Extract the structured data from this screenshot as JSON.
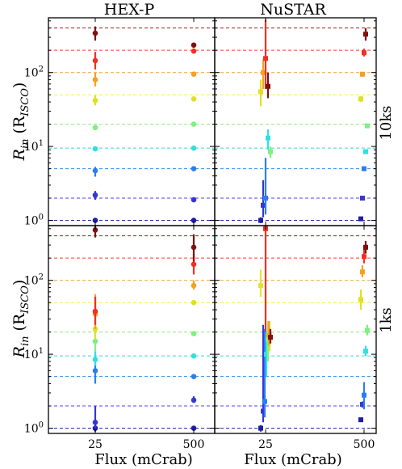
{
  "figure": {
    "column_titles": [
      "HEX-P",
      "NuSTAR"
    ],
    "row_labels": [
      "10ks",
      "1ks"
    ],
    "ylabel_main": "R",
    "ylabel_sub": "in",
    "ylabel_unit_open": " (R",
    "ylabel_unit_sub": "ISCO",
    "ylabel_unit_close": ")",
    "xlabel": "Flux (mCrab)",
    "xtick_labels": [
      "25",
      "500"
    ],
    "ytick_exponents": [
      "0",
      "1",
      "2"
    ],
    "ytick_base": "10"
  },
  "chart_data": {
    "type": "scatter",
    "y_scale": "log",
    "ylim": [
      0.85,
      550
    ],
    "x_categories": [
      "25",
      "500"
    ],
    "reference_lines": [
      {
        "value": 1,
        "color": "#2a2aa8"
      },
      {
        "value": 2,
        "color": "#4a4ae8"
      },
      {
        "value": 5,
        "color": "#2f8ff0"
      },
      {
        "value": 9.5,
        "color": "#38d8d8"
      },
      {
        "value": 20,
        "color": "#8ce878"
      },
      {
        "value": 50,
        "color": "#f0f040"
      },
      {
        "value": 100,
        "color": "#f5a030"
      },
      {
        "value": 200,
        "color": "#f04030"
      },
      {
        "value": 400,
        "color": "#a02020"
      }
    ],
    "panels": [
      {
        "row": "10ks",
        "column": "HEX-P",
        "marker": "circle",
        "points": [
          {
            "x": 0,
            "y": 1.0,
            "lo": 0.95,
            "hi": 1.05,
            "color": "#1e1e9a"
          },
          {
            "x": 0,
            "y": 2.2,
            "lo": 1.9,
            "hi": 2.5,
            "color": "#3535d8"
          },
          {
            "x": 0,
            "y": 4.7,
            "lo": 3.9,
            "hi": 5.3,
            "color": "#2a7ef0"
          },
          {
            "x": 0,
            "y": 9.3,
            "lo": 9.0,
            "hi": 9.7,
            "color": "#30e0e0"
          },
          {
            "x": 0,
            "y": 18,
            "lo": 17,
            "hi": 19,
            "color": "#7ef07e"
          },
          {
            "x": 0,
            "y": 42,
            "lo": 36,
            "hi": 49,
            "color": "#e0e020"
          },
          {
            "x": 0,
            "y": 80,
            "lo": 65,
            "hi": 100,
            "color": "#f5a020"
          },
          {
            "x": 0,
            "y": 145,
            "lo": 110,
            "hi": 190,
            "color": "#f03020"
          },
          {
            "x": 0,
            "y": 340,
            "lo": 270,
            "hi": 420,
            "color": "#801010"
          },
          {
            "x": 1,
            "y": 1.0,
            "lo": 0.98,
            "hi": 1.02,
            "color": "#1e1e9a"
          },
          {
            "x": 1,
            "y": 1.9,
            "lo": 1.85,
            "hi": 1.95,
            "color": "#3535d8"
          },
          {
            "x": 1,
            "y": 5.0,
            "lo": 4.9,
            "hi": 5.1,
            "color": "#2a7ef0"
          },
          {
            "x": 1,
            "y": 9.5,
            "lo": 9.3,
            "hi": 9.7,
            "color": "#30e0e0"
          },
          {
            "x": 1,
            "y": 20,
            "lo": 19.5,
            "hi": 20.5,
            "color": "#7ef07e"
          },
          {
            "x": 1,
            "y": 44,
            "lo": 43,
            "hi": 45,
            "color": "#e0e020"
          },
          {
            "x": 1,
            "y": 95,
            "lo": 92,
            "hi": 98,
            "color": "#f5a020"
          },
          {
            "x": 1,
            "y": 195,
            "lo": 190,
            "hi": 200,
            "color": "#f03020"
          },
          {
            "x": 1,
            "y": 235,
            "lo": 225,
            "hi": 245,
            "color": "#801010"
          }
        ]
      },
      {
        "row": "10ks",
        "column": "NuSTAR",
        "marker": "square",
        "points": [
          {
            "x": 0,
            "y": 1.0,
            "lo": 0.92,
            "hi": 1.1,
            "offset": -6,
            "color": "#1e1e9a"
          },
          {
            "x": 0,
            "y": 1.6,
            "lo": 1.1,
            "hi": 3.5,
            "offset": -3,
            "color": "#3535d8"
          },
          {
            "x": 0,
            "y": 2.0,
            "lo": 1.2,
            "hi": 7.0,
            "offset": 0,
            "color": "#2a7ef0"
          },
          {
            "x": 0,
            "y": 13,
            "lo": 9.0,
            "hi": 17,
            "offset": 3,
            "color": "#30e0e0"
          },
          {
            "x": 0,
            "y": 8.5,
            "lo": 7.0,
            "hi": 10,
            "offset": 6,
            "color": "#7ef07e"
          },
          {
            "x": 0,
            "y": 55,
            "lo": 35,
            "hi": 80,
            "offset": -6,
            "color": "#e0e020"
          },
          {
            "x": 0,
            "y": 100,
            "lo": 60,
            "hi": 150,
            "offset": -3,
            "color": "#f5a020"
          },
          {
            "x": 0,
            "y": 155,
            "lo": 60,
            "hi": 520,
            "offset": 0,
            "color": "#f03020"
          },
          {
            "x": 0,
            "y": 65,
            "lo": 45,
            "hi": 100,
            "offset": 3,
            "color": "#801010"
          },
          {
            "x": 1,
            "y": 1.05,
            "lo": 1.0,
            "hi": 1.1,
            "offset": -4,
            "color": "#1e1e9a"
          },
          {
            "x": 1,
            "y": 2.0,
            "lo": 1.95,
            "hi": 2.05,
            "offset": -2,
            "color": "#3535d8"
          },
          {
            "x": 1,
            "y": 5.0,
            "lo": 4.8,
            "hi": 5.2,
            "offset": 0,
            "color": "#2a7ef0"
          },
          {
            "x": 1,
            "y": 8.5,
            "lo": 8.2,
            "hi": 8.8,
            "offset": 2,
            "color": "#30e0e0"
          },
          {
            "x": 1,
            "y": 19,
            "lo": 18,
            "hi": 20,
            "offset": 4,
            "color": "#7ef07e"
          },
          {
            "x": 1,
            "y": 44,
            "lo": 40,
            "hi": 48,
            "offset": -4,
            "color": "#e0e020"
          },
          {
            "x": 1,
            "y": 95,
            "lo": 88,
            "hi": 102,
            "offset": -2,
            "color": "#f5a020"
          },
          {
            "x": 1,
            "y": 185,
            "lo": 165,
            "hi": 210,
            "offset": 0,
            "color": "#f03020"
          },
          {
            "x": 1,
            "y": 330,
            "lo": 270,
            "hi": 400,
            "offset": 2,
            "color": "#801010"
          }
        ]
      },
      {
        "row": "1ks",
        "column": "HEX-P",
        "marker": "circle",
        "points": [
          {
            "x": 0,
            "y": 1.0,
            "lo": 0.9,
            "hi": 1.1,
            "color": "#1e1e9a"
          },
          {
            "x": 0,
            "y": 1.2,
            "lo": 1.0,
            "hi": 2.0,
            "color": "#3535d8"
          },
          {
            "x": 0,
            "y": 6.0,
            "lo": 4.0,
            "hi": 8.0,
            "color": "#2a7ef0"
          },
          {
            "x": 0,
            "y": 8.5,
            "lo": 7.0,
            "hi": 11,
            "color": "#30e0e0"
          },
          {
            "x": 0,
            "y": 15,
            "lo": 11,
            "hi": 22,
            "color": "#7ef07e"
          },
          {
            "x": 0,
            "y": 22,
            "lo": 16,
            "hi": 30,
            "color": "#e0e020"
          },
          {
            "x": 0,
            "y": 35,
            "lo": 22,
            "hi": 65,
            "color": "#f5a020"
          },
          {
            "x": 0,
            "y": 38,
            "lo": 25,
            "hi": 60,
            "color": "#f03020"
          },
          {
            "x": 0,
            "y": 480,
            "lo": 380,
            "hi": 550,
            "color": "#801010"
          },
          {
            "x": 1,
            "y": 1.0,
            "lo": 0.97,
            "hi": 1.03,
            "color": "#1e1e9a"
          },
          {
            "x": 1,
            "y": 2.4,
            "lo": 2.2,
            "hi": 2.7,
            "color": "#3535d8"
          },
          {
            "x": 1,
            "y": 5.0,
            "lo": 4.8,
            "hi": 5.2,
            "color": "#2a7ef0"
          },
          {
            "x": 1,
            "y": 9.5,
            "lo": 9.0,
            "hi": 10,
            "color": "#30e0e0"
          },
          {
            "x": 1,
            "y": 19,
            "lo": 18,
            "hi": 20,
            "color": "#7ef07e"
          },
          {
            "x": 1,
            "y": 50,
            "lo": 47,
            "hi": 53,
            "color": "#e0e020"
          },
          {
            "x": 1,
            "y": 85,
            "lo": 75,
            "hi": 100,
            "color": "#f5a020"
          },
          {
            "x": 1,
            "y": 165,
            "lo": 120,
            "hi": 230,
            "color": "#f03020"
          },
          {
            "x": 1,
            "y": 280,
            "lo": 180,
            "hi": 420,
            "color": "#801010"
          }
        ]
      },
      {
        "row": "1ks",
        "column": "NuSTAR",
        "marker": "square",
        "points": [
          {
            "x": 0,
            "y": 1.0,
            "lo": 0.9,
            "hi": 1.1,
            "offset": -6,
            "color": "#1e1e9a"
          },
          {
            "x": 0,
            "y": 1.7,
            "lo": 1.2,
            "hi": 25,
            "offset": -3,
            "color": "#3535d8"
          },
          {
            "x": 0,
            "y": 2.3,
            "lo": 1.4,
            "hi": 22,
            "offset": -1,
            "color": "#2a7ef0"
          },
          {
            "x": 0,
            "y": 10,
            "lo": 5,
            "hi": 20,
            "offset": 1,
            "color": "#30e0e0"
          },
          {
            "x": 0,
            "y": 16,
            "lo": 8,
            "hi": 28,
            "offset": 3,
            "color": "#7ef07e"
          },
          {
            "x": 0,
            "y": 18,
            "lo": 11,
            "hi": 28,
            "offset": 5,
            "color": "#e0e020"
          },
          {
            "x": 0,
            "y": 85,
            "lo": 60,
            "hi": 140,
            "offset": -6,
            "color": "#e8e030"
          },
          {
            "x": 0,
            "y": 18,
            "lo": 13,
            "hi": 28,
            "offset": 4,
            "color": "#f5a020"
          },
          {
            "x": 0,
            "y": 500,
            "lo": 20,
            "hi": 550,
            "offset": 0,
            "color": "#f03020"
          },
          {
            "x": 0,
            "y": 17,
            "lo": 14,
            "hi": 22,
            "offset": 6,
            "color": "#801010"
          },
          {
            "x": 1,
            "y": 1.3,
            "lo": 1.25,
            "hi": 1.35,
            "offset": -4,
            "color": "#1e1e9a"
          },
          {
            "x": 1,
            "y": 2.1,
            "lo": 1.9,
            "hi": 2.3,
            "offset": -2,
            "color": "#3535d8"
          },
          {
            "x": 1,
            "y": 2.8,
            "lo": 1.8,
            "hi": 4.2,
            "offset": 0,
            "color": "#2a7ef0"
          },
          {
            "x": 1,
            "y": 11,
            "lo": 9.5,
            "hi": 13,
            "offset": 2,
            "color": "#30e0e0"
          },
          {
            "x": 1,
            "y": 21,
            "lo": 18,
            "hi": 25,
            "offset": 4,
            "color": "#7ef07e"
          },
          {
            "x": 1,
            "y": 55,
            "lo": 40,
            "hi": 75,
            "offset": -4,
            "color": "#e0e020"
          },
          {
            "x": 1,
            "y": 130,
            "lo": 110,
            "hi": 160,
            "offset": -2,
            "color": "#f5a020"
          },
          {
            "x": 1,
            "y": 210,
            "lo": 170,
            "hi": 280,
            "offset": 0,
            "color": "#f03020"
          },
          {
            "x": 1,
            "y": 280,
            "lo": 230,
            "hi": 340,
            "offset": 2,
            "color": "#801010"
          }
        ]
      }
    ]
  }
}
